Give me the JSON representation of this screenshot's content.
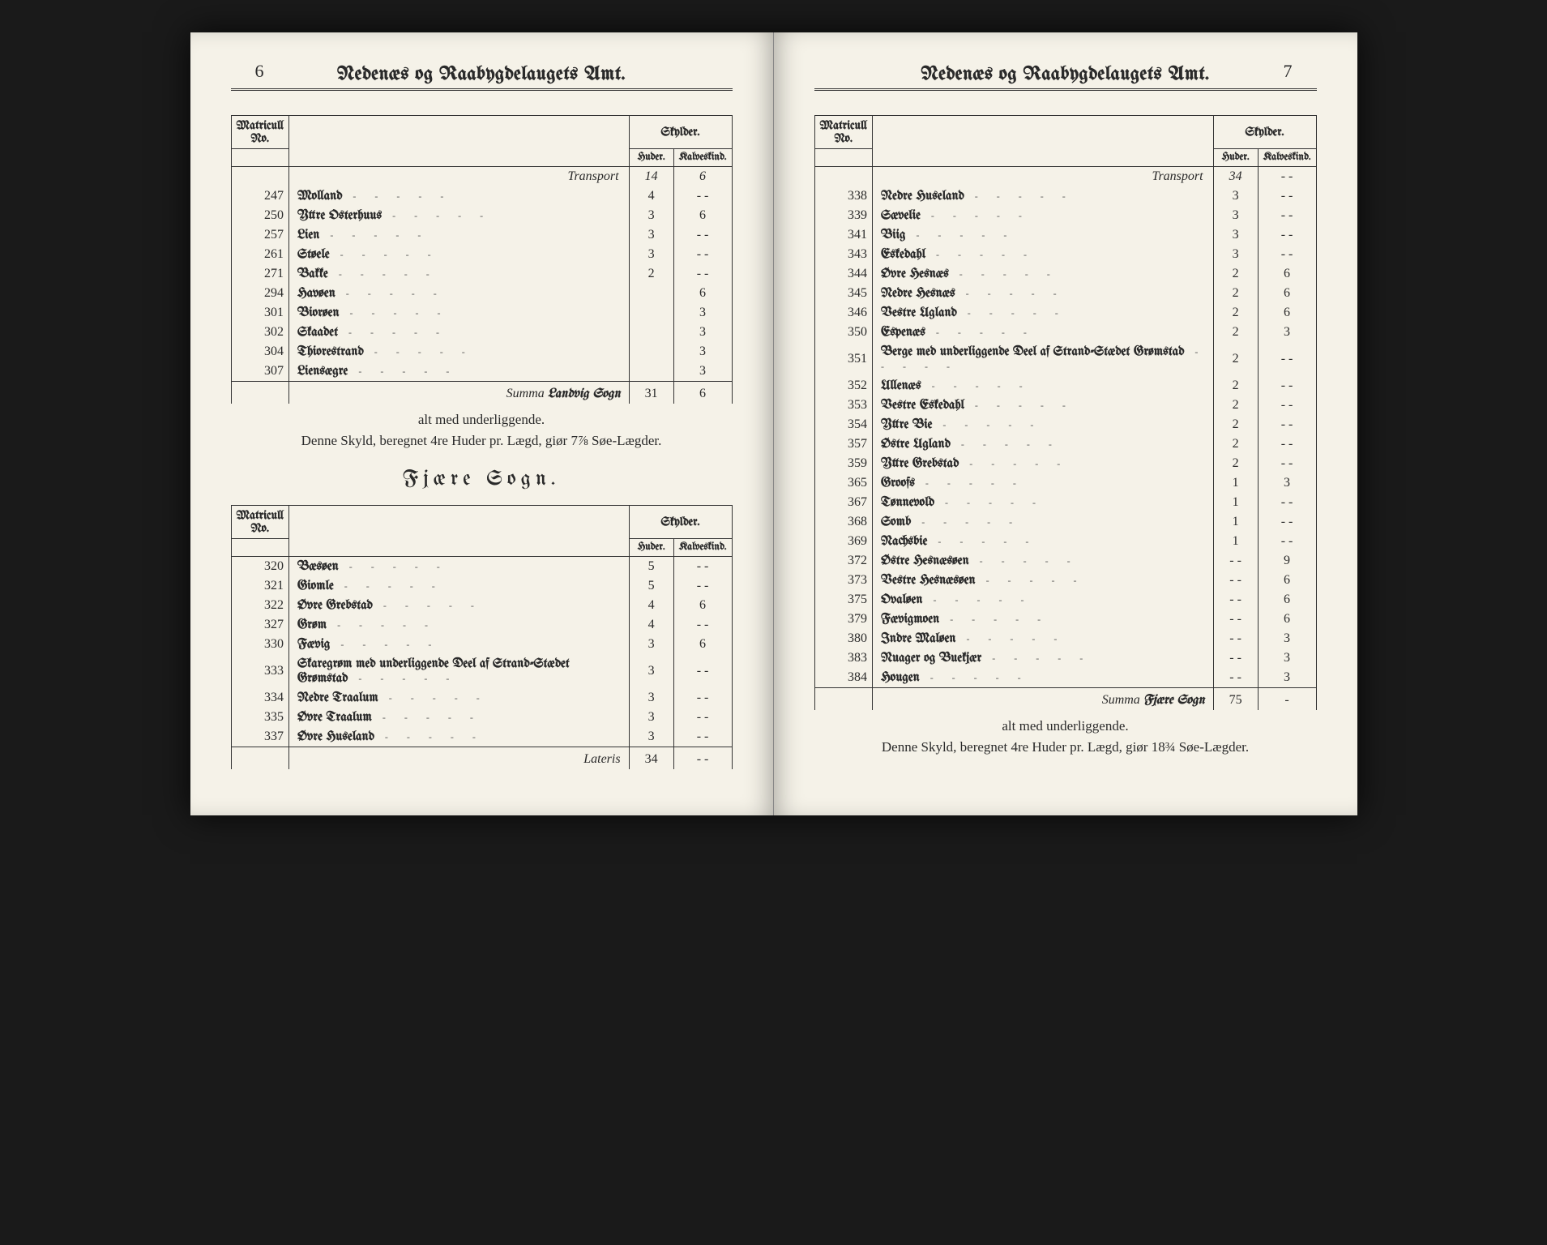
{
  "colors": {
    "page_bg": "#f5f2e8",
    "ink": "#2a2a2a",
    "rule": "#333333",
    "outer_bg": "#1a1a1a"
  },
  "typography": {
    "body_family": "Georgia, Times New Roman, serif",
    "blackletter_family": "Old English Text MT, UnifrakturMaguntia, serif",
    "header_size_pt": 18,
    "body_size_pt": 12,
    "section_title_size_pt": 20
  },
  "left": {
    "page_num": "6",
    "header": "Nedenæs og Raabygdelaugets Amt.",
    "table1": {
      "col_headers": {
        "mat": "Matricull No.",
        "sky": "Skylder.",
        "hud": "Huder.",
        "kal": "Kalveskind."
      },
      "transport_label": "Transport",
      "transport": {
        "hud": "14",
        "kal": "6"
      },
      "rows": [
        {
          "no": "247",
          "name": "Molland",
          "hud": "4",
          "kal": "- -"
        },
        {
          "no": "250",
          "name": "Yttre Osterhuus",
          "hud": "3",
          "kal": "6"
        },
        {
          "no": "257",
          "name": "Lien",
          "hud": "3",
          "kal": "- -"
        },
        {
          "no": "261",
          "name": "Støele",
          "hud": "3",
          "kal": "- -"
        },
        {
          "no": "271",
          "name": "Bakke",
          "hud": "2",
          "kal": "- -"
        },
        {
          "no": "294",
          "name": "Havøen",
          "hud": "",
          "kal": "6"
        },
        {
          "no": "301",
          "name": "Biorøen",
          "hud": "",
          "kal": "3"
        },
        {
          "no": "302",
          "name": "Skaadet",
          "hud": "",
          "kal": "3"
        },
        {
          "no": "304",
          "name": "Thiorestrand",
          "hud": "",
          "kal": "3"
        },
        {
          "no": "307",
          "name": "Liensægre",
          "hud": "",
          "kal": "3"
        }
      ],
      "summa_label": "Summa",
      "summa_name": "Landvig Sogn",
      "summa": {
        "hud": "31",
        "kal": "6"
      }
    },
    "note1": "alt med underliggende.",
    "note2": "Denne Skyld, beregnet 4re Huder pr. Lægd, giør 7⅞ Søe-Lægder.",
    "section_title": "Fjære Sogn.",
    "table2": {
      "col_headers": {
        "mat": "Matricull No.",
        "sky": "Skylder.",
        "hud": "Huder.",
        "kal": "Kalveskind."
      },
      "rows": [
        {
          "no": "320",
          "name": "Bæsøen",
          "hud": "5",
          "kal": "- -"
        },
        {
          "no": "321",
          "name": "Giomle",
          "hud": "5",
          "kal": "- -"
        },
        {
          "no": "322",
          "name": "Øvre Grebstad",
          "hud": "4",
          "kal": "6"
        },
        {
          "no": "327",
          "name": "Grøm",
          "hud": "4",
          "kal": "- -"
        },
        {
          "no": "330",
          "name": "Fævig",
          "hud": "3",
          "kal": "6"
        },
        {
          "no": "333",
          "name": "Skaregrøm med underliggende Deel af Strand-Stædet Grømstad",
          "hud": "3",
          "kal": "- -"
        },
        {
          "no": "334",
          "name": "Nedre Traalum",
          "hud": "3",
          "kal": "- -"
        },
        {
          "no": "335",
          "name": "Øvre Traalum",
          "hud": "3",
          "kal": "- -"
        },
        {
          "no": "337",
          "name": "Øvre Huseland",
          "hud": "3",
          "kal": "- -"
        }
      ],
      "lateris_label": "Lateris",
      "lateris": {
        "hud": "34",
        "kal": "- -"
      }
    }
  },
  "right": {
    "page_num": "7",
    "header": "Nedenæs og Raabygdelaugets Amt.",
    "table": {
      "col_headers": {
        "mat": "Matricull No.",
        "sky": "Skylder.",
        "hud": "Huder.",
        "kal": "Kalveskind."
      },
      "transport_label": "Transport",
      "transport": {
        "hud": "34",
        "kal": "- -"
      },
      "rows": [
        {
          "no": "338",
          "name": "Nedre Huseland",
          "hud": "3",
          "kal": "- -"
        },
        {
          "no": "339",
          "name": "Sævelie",
          "hud": "3",
          "kal": "- -"
        },
        {
          "no": "341",
          "name": "Biig",
          "hud": "3",
          "kal": "- -"
        },
        {
          "no": "343",
          "name": "Eskedahl",
          "hud": "3",
          "kal": "- -"
        },
        {
          "no": "344",
          "name": "Øvre Hesnæs",
          "hud": "2",
          "kal": "6"
        },
        {
          "no": "345",
          "name": "Nedre Hesnæs",
          "hud": "2",
          "kal": "6"
        },
        {
          "no": "346",
          "name": "Vestre Ugland",
          "hud": "2",
          "kal": "6"
        },
        {
          "no": "350",
          "name": "Espenæs",
          "hud": "2",
          "kal": "3"
        },
        {
          "no": "351",
          "name": "Berge med underliggende Deel af Strand-Stædet Grømstad",
          "hud": "2",
          "kal": "- -"
        },
        {
          "no": "352",
          "name": "Ullenæs",
          "hud": "2",
          "kal": "- -"
        },
        {
          "no": "353",
          "name": "Vestre Eskedahl",
          "hud": "2",
          "kal": "- -"
        },
        {
          "no": "354",
          "name": "Yttre Bie",
          "hud": "2",
          "kal": "- -"
        },
        {
          "no": "357",
          "name": "Østre Ugland",
          "hud": "2",
          "kal": "- -"
        },
        {
          "no": "359",
          "name": "Yttre Grebstad",
          "hud": "2",
          "kal": "- -"
        },
        {
          "no": "365",
          "name": "Groofs",
          "hud": "1",
          "kal": "3"
        },
        {
          "no": "367",
          "name": "Tønnevold",
          "hud": "1",
          "kal": "- -"
        },
        {
          "no": "368",
          "name": "Somb",
          "hud": "1",
          "kal": "- -"
        },
        {
          "no": "369",
          "name": "Nachsbie",
          "hud": "1",
          "kal": "- -"
        },
        {
          "no": "372",
          "name": "Østre Hesnæsøen",
          "hud": "- -",
          "kal": "9"
        },
        {
          "no": "373",
          "name": "Vestre Hesnæsøen",
          "hud": "- -",
          "kal": "6"
        },
        {
          "no": "375",
          "name": "Ovaløen",
          "hud": "- -",
          "kal": "6"
        },
        {
          "no": "379",
          "name": "Fævigmoen",
          "hud": "- -",
          "kal": "6"
        },
        {
          "no": "380",
          "name": "Indre Maløen",
          "hud": "- -",
          "kal": "3"
        },
        {
          "no": "383",
          "name": "Nuager og Buekjær",
          "hud": "- -",
          "kal": "3"
        },
        {
          "no": "384",
          "name": "Hougen",
          "hud": "- -",
          "kal": "3"
        }
      ],
      "summa_label": "Summa",
      "summa_name": "Fjære Sogn",
      "summa": {
        "hud": "75",
        "kal": "-"
      }
    },
    "note1": "alt med underliggende.",
    "note2": "Denne Skyld, beregnet 4re Huder pr. Lægd, giør 18¾ Søe-Lægder."
  }
}
